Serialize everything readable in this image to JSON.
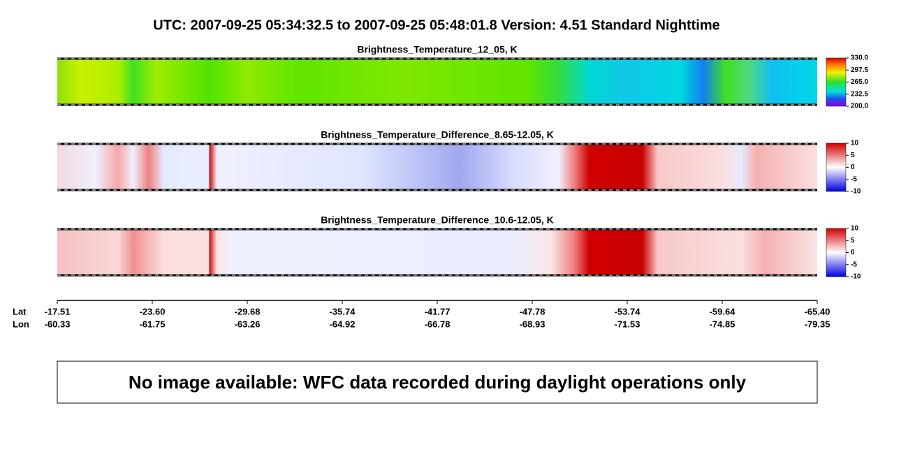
{
  "header": {
    "title": "UTC:  2007-09-25   05:34:32.5  to  2007-09-25   05:48:01.8    Version: 4.51  Standard Nighttime"
  },
  "panels": [
    {
      "title": "Brightness_Temperature_12_05, K",
      "colorbar_ticks": [
        "330.0",
        "297.5",
        "265.0",
        "232.5",
        "200.0"
      ]
    },
    {
      "title": "Brightness_Temperature_Difference_8.65-12.05, K",
      "colorbar_ticks": [
        "10",
        "5",
        "0",
        "-5",
        "-10"
      ]
    },
    {
      "title": "Brightness_Temperature_Difference_10.6-12.05, K",
      "colorbar_ticks": [
        "10",
        "5",
        "0",
        "-5",
        "-10"
      ]
    }
  ],
  "axis": {
    "lat_label": "Lat",
    "lon_label": "Lon",
    "lat": [
      "-17.51",
      "-23.60",
      "-29.68",
      "-35.74",
      "-41.77",
      "-47.78",
      "-53.74",
      "-59.64",
      "-65.40"
    ],
    "lon": [
      "-60.33",
      "-61.75",
      "-63.26",
      "-64.92",
      "-66.78",
      "-68.93",
      "-71.53",
      "-74.85",
      "-79.35"
    ]
  },
  "notice": {
    "text": "No image available: WFC data recorded during daylight operations only"
  }
}
